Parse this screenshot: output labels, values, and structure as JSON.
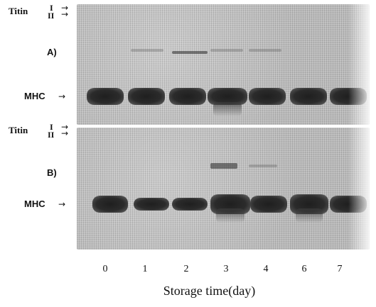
{
  "panels": [
    {
      "id": "A",
      "label": "A)",
      "titin_label": "Titin",
      "titin_bands": [
        "I",
        "II"
      ],
      "mhc_label": "MHC",
      "arrow": "→"
    },
    {
      "id": "B",
      "label": "B)",
      "titin_label": "Titin",
      "titin_bands": [
        "I",
        "II"
      ],
      "mhc_label": "MHC",
      "arrow": "→"
    }
  ],
  "lanes": [
    "0",
    "1",
    "2",
    "3",
    "4",
    "6",
    "7"
  ],
  "xlabel": "Storage time(day)"
}
